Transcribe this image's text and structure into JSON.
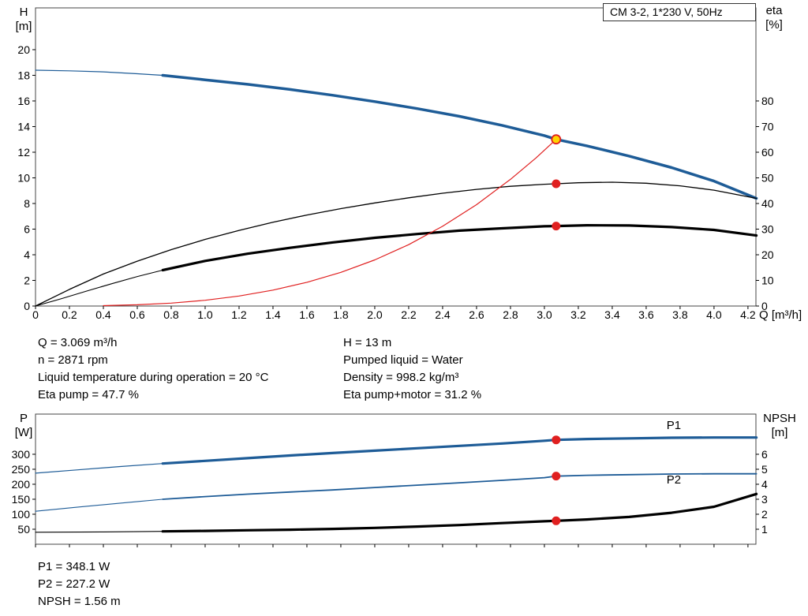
{
  "title_box": "CM 3-2, 1*230 V, 50Hz",
  "colors": {
    "curve_blue": "#1e5c97",
    "curve_red": "#e02020",
    "curve_black": "#000000",
    "duty_yellow": "#ffd400",
    "frame": "#444444",
    "text": "#000000"
  },
  "info_top": {
    "left": [
      "Q = 3.069 m³/h",
      "n = 2871 rpm",
      "Liquid temperature during operation = 20 °C",
      "Eta pump = 47.7 %"
    ],
    "right": [
      "H = 13 m",
      "Pumped liquid = Water",
      "Density = 998.2 kg/m³",
      "Eta pump+motor = 31.2 %"
    ]
  },
  "info_bottom": [
    "P1 = 348.1 W",
    "P2 = 227.2 W",
    "NPSH = 1.56 m"
  ],
  "chart_data": [
    {
      "type": "line",
      "title": "CM 3-2, 1*230 V, 50Hz — QH and efficiency curves",
      "x_axis": {
        "label": "Q [m³/h]",
        "min": 0,
        "max": 4.247,
        "show_tick_labels": true,
        "tick_labels": [
          "0",
          "0.2",
          "0.4",
          "0.6",
          "0.8",
          "1.0",
          "1.2",
          "1.4",
          "1.6",
          "1.8",
          "2.0",
          "2.2",
          "2.4",
          "2.6",
          "2.8",
          "3.0",
          "3.2",
          "3.4",
          "3.6",
          "3.8",
          "4.0",
          "4.2"
        ]
      },
      "left_axis": {
        "title": "H",
        "unit": "[m]",
        "min": 0,
        "max": 23.26,
        "tick_labels": [
          "0",
          "2",
          "4",
          "6",
          "8",
          "10",
          "12",
          "14",
          "16",
          "18",
          "20"
        ]
      },
      "right_axis": {
        "title": "eta",
        "unit": "[%]",
        "min": 0,
        "max": 116.3,
        "tick_labels": [
          "0",
          "10",
          "20",
          "30",
          "40",
          "50",
          "60",
          "70",
          "80"
        ]
      },
      "duty_point": {
        "Q": 3.069,
        "H": 13,
        "eta_pump": 47.7,
        "eta_pump_motor": 31.2,
        "n_rpm": 2871
      },
      "series": [
        {
          "name": "head-lead",
          "axis": "left",
          "color": "curve_blue",
          "width": 1.2,
          "points": [
            [
              0,
              18.4
            ],
            [
              0.2,
              18.35
            ],
            [
              0.4,
              18.27
            ],
            [
              0.6,
              18.12
            ],
            [
              0.75,
              18.0
            ]
          ]
        },
        {
          "name": "head-curve",
          "axis": "left",
          "color": "curve_blue",
          "width": 3.5,
          "points": [
            [
              0.75,
              18.0
            ],
            [
              1.0,
              17.65
            ],
            [
              1.25,
              17.3
            ],
            [
              1.5,
              16.9
            ],
            [
              1.75,
              16.45
            ],
            [
              2.0,
              15.95
            ],
            [
              2.25,
              15.4
            ],
            [
              2.5,
              14.8
            ],
            [
              2.75,
              14.1
            ],
            [
              3.0,
              13.3
            ],
            [
              3.069,
              13.0
            ],
            [
              3.25,
              12.5
            ],
            [
              3.5,
              11.7
            ],
            [
              3.75,
              10.8
            ],
            [
              4.0,
              9.75
            ],
            [
              4.25,
              8.4
            ]
          ]
        },
        {
          "name": "eta-pump-curve",
          "axis": "right",
          "color": "curve_black",
          "width": 1.3,
          "points": [
            [
              0,
              0
            ],
            [
              0.2,
              6.5
            ],
            [
              0.4,
              12.5
            ],
            [
              0.6,
              17.5
            ],
            [
              0.8,
              22
            ],
            [
              1.0,
              26
            ],
            [
              1.2,
              29.5
            ],
            [
              1.4,
              32.7
            ],
            [
              1.6,
              35.5
            ],
            [
              1.8,
              38
            ],
            [
              2.0,
              40.2
            ],
            [
              2.2,
              42.2
            ],
            [
              2.4,
              44
            ],
            [
              2.6,
              45.5
            ],
            [
              2.8,
              46.7
            ],
            [
              3.0,
              47.5
            ],
            [
              3.069,
              47.7
            ],
            [
              3.2,
              48.1
            ],
            [
              3.4,
              48.3
            ],
            [
              3.6,
              47.9
            ],
            [
              3.8,
              46.9
            ],
            [
              4.0,
              45.2
            ],
            [
              4.25,
              42
            ]
          ]
        },
        {
          "name": "eta-pump-motor-lead",
          "axis": "right",
          "color": "curve_black",
          "width": 1.1,
          "points": [
            [
              0,
              0
            ],
            [
              0.15,
              2.8
            ],
            [
              0.3,
              5.8
            ],
            [
              0.45,
              8.7
            ],
            [
              0.6,
              11.5
            ],
            [
              0.75,
              14
            ]
          ]
        },
        {
          "name": "eta-pump-motor-curve",
          "axis": "right",
          "color": "curve_black",
          "width": 3.2,
          "points": [
            [
              0.75,
              14
            ],
            [
              1.0,
              17.6
            ],
            [
              1.25,
              20.4
            ],
            [
              1.5,
              22.7
            ],
            [
              1.75,
              24.8
            ],
            [
              2.0,
              26.6
            ],
            [
              2.25,
              28.1
            ],
            [
              2.5,
              29.4
            ],
            [
              2.75,
              30.3
            ],
            [
              3.0,
              31.1
            ],
            [
              3.069,
              31.2
            ],
            [
              3.25,
              31.5
            ],
            [
              3.5,
              31.4
            ],
            [
              3.75,
              30.8
            ],
            [
              4.0,
              29.7
            ],
            [
              4.25,
              27.5
            ]
          ]
        },
        {
          "name": "system-curve",
          "axis": "left",
          "color": "curve_red",
          "width": 1.2,
          "points": [
            [
              0.4,
              0.03
            ],
            [
              0.6,
              0.1
            ],
            [
              0.8,
              0.23
            ],
            [
              1.0,
              0.45
            ],
            [
              1.2,
              0.78
            ],
            [
              1.4,
              1.24
            ],
            [
              1.6,
              1.85
            ],
            [
              1.8,
              2.63
            ],
            [
              2.0,
              3.6
            ],
            [
              2.2,
              4.79
            ],
            [
              2.4,
              6.22
            ],
            [
              2.6,
              7.91
            ],
            [
              2.8,
              9.88
            ],
            [
              2.95,
              11.55
            ],
            [
              3.069,
              13.0
            ]
          ]
        }
      ],
      "markers": [
        {
          "name": "eta-pump-point",
          "axis": "right",
          "x": 3.069,
          "y": 47.7,
          "fill": "curve_red",
          "stroke": "curve_red",
          "r": 5,
          "sw": 1
        },
        {
          "name": "eta-pump-motor-point",
          "axis": "right",
          "x": 3.069,
          "y": 31.2,
          "fill": "curve_red",
          "stroke": "curve_red",
          "r": 5,
          "sw": 1
        },
        {
          "name": "duty-point",
          "axis": "left",
          "x": 3.069,
          "y": 13,
          "fill": "duty_yellow",
          "stroke": "curve_red",
          "r": 5.5,
          "sw": 1.8
        }
      ],
      "curve_labels": []
    },
    {
      "type": "line",
      "title": "Power and NPSH curves",
      "x_axis": {
        "label": "",
        "min": 0,
        "max": 4.247,
        "show_tick_labels": false,
        "tick_labels": [
          "0",
          "0.2",
          "0.4",
          "0.6",
          "0.8",
          "1.0",
          "1.2",
          "1.4",
          "1.6",
          "1.8",
          "2.0",
          "2.2",
          "2.4",
          "2.6",
          "2.8",
          "3.0",
          "3.2",
          "3.4",
          "3.6",
          "3.8",
          "4.0",
          "4.2"
        ]
      },
      "left_axis": {
        "title": "P",
        "unit": "[W]",
        "min": 0,
        "max": 434,
        "tick_labels": [
          "50",
          "100",
          "150",
          "200",
          "250",
          "300"
        ]
      },
      "right_axis": {
        "title": "NPSH",
        "unit": "[m]",
        "min": 0,
        "max": 8.68,
        "tick_labels": [
          "1",
          "2",
          "3",
          "4",
          "5",
          "6"
        ]
      },
      "duty_point": {
        "Q": 3.069,
        "P1_W": 348.1,
        "P2_W": 227.2,
        "NPSH_m": 1.56
      },
      "series": [
        {
          "name": "p1-lead",
          "axis": "left",
          "color": "curve_blue",
          "width": 1.2,
          "points": [
            [
              0,
              237
            ],
            [
              0.25,
              248
            ],
            [
              0.5,
              259
            ],
            [
              0.75,
              269
            ]
          ]
        },
        {
          "name": "p1-curve",
          "axis": "left",
          "color": "curve_blue",
          "width": 3.2,
          "points": [
            [
              0.75,
              269
            ],
            [
              1.0,
              278
            ],
            [
              1.25,
              287
            ],
            [
              1.5,
              296
            ],
            [
              1.75,
              304
            ],
            [
              2.0,
              312
            ],
            [
              2.25,
              320
            ],
            [
              2.5,
              328
            ],
            [
              2.75,
              336
            ],
            [
              3.0,
              345
            ],
            [
              3.069,
              348
            ],
            [
              3.25,
              351
            ],
            [
              3.5,
              353
            ],
            [
              3.75,
              355
            ],
            [
              4.0,
              356
            ],
            [
              4.25,
              356
            ]
          ]
        },
        {
          "name": "p2-lead",
          "axis": "left",
          "color": "curve_blue",
          "width": 1.1,
          "points": [
            [
              0,
              110
            ],
            [
              0.25,
              124
            ],
            [
              0.5,
              137
            ],
            [
              0.75,
              150
            ]
          ]
        },
        {
          "name": "p2-curve",
          "axis": "left",
          "color": "curve_blue",
          "width": 1.8,
          "points": [
            [
              0.75,
              150
            ],
            [
              1.0,
              159
            ],
            [
              1.25,
              167
            ],
            [
              1.5,
              174
            ],
            [
              1.75,
              181
            ],
            [
              2.0,
              189
            ],
            [
              2.25,
              197
            ],
            [
              2.5,
              205
            ],
            [
              2.75,
              213
            ],
            [
              3.0,
              222
            ],
            [
              3.069,
              227
            ],
            [
              3.25,
              230
            ],
            [
              3.5,
              232
            ],
            [
              3.75,
              234
            ],
            [
              4.0,
              235
            ],
            [
              4.25,
              235
            ]
          ]
        },
        {
          "name": "npsh-lead",
          "axis": "right",
          "color": "curve_black",
          "width": 1.1,
          "points": [
            [
              0,
              0.8
            ],
            [
              0.4,
              0.82
            ],
            [
              0.75,
              0.86
            ]
          ]
        },
        {
          "name": "npsh-curve",
          "axis": "right",
          "color": "curve_black",
          "width": 3.2,
          "points": [
            [
              0.75,
              0.86
            ],
            [
              1.0,
              0.89
            ],
            [
              1.25,
              0.93
            ],
            [
              1.5,
              0.97
            ],
            [
              1.75,
              1.02
            ],
            [
              2.0,
              1.09
            ],
            [
              2.25,
              1.18
            ],
            [
              2.5,
              1.28
            ],
            [
              2.75,
              1.41
            ],
            [
              3.0,
              1.53
            ],
            [
              3.069,
              1.56
            ],
            [
              3.25,
              1.65
            ],
            [
              3.5,
              1.82
            ],
            [
              3.75,
              2.1
            ],
            [
              4.0,
              2.5
            ],
            [
              4.25,
              3.35
            ]
          ]
        }
      ],
      "markers": [
        {
          "name": "p1-point",
          "axis": "left",
          "x": 3.069,
          "y": 348.1,
          "fill": "curve_red",
          "stroke": "curve_red",
          "r": 5,
          "sw": 1
        },
        {
          "name": "p2-point",
          "axis": "left",
          "x": 3.069,
          "y": 227.2,
          "fill": "curve_red",
          "stroke": "curve_red",
          "r": 5,
          "sw": 1
        },
        {
          "name": "npsh-point",
          "axis": "right",
          "x": 3.069,
          "y": 1.56,
          "fill": "curve_red",
          "stroke": "curve_red",
          "r": 5,
          "sw": 1
        }
      ],
      "curve_labels": [
        {
          "text": "P1",
          "axis": "left",
          "x": 3.72,
          "y": 384,
          "color": "curve_blue"
        },
        {
          "text": "P2",
          "axis": "left",
          "x": 3.72,
          "y": 203,
          "color": "curve_blue"
        }
      ]
    }
  ]
}
